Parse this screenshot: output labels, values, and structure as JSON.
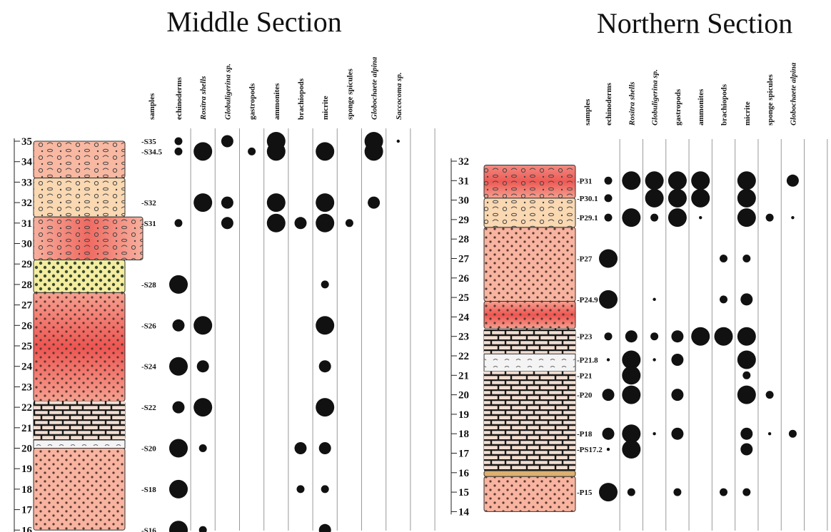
{
  "colors": {
    "salmon": "#f8b4a0",
    "red": "#ee5550",
    "yellow": "#f4eda0",
    "peach": "#f6cba8",
    "limestone": "#f0ddd0",
    "white_band": "#f2f2f2",
    "tan": "#d9b070",
    "dot": "#111111"
  },
  "sections": [
    {
      "id": "middle",
      "title": "Middle Section",
      "samples_label": "samples",
      "columns": [
        {
          "label": "echinoderms",
          "italic": false
        },
        {
          "label": "Rositra shells",
          "italic": true
        },
        {
          "label": "Globuligerina sp.",
          "italic": true
        },
        {
          "label": "gastropods",
          "italic": false
        },
        {
          "label": "ammonites",
          "italic": false
        },
        {
          "label": "brachiopods",
          "italic": false
        },
        {
          "label": "micrite",
          "italic": false
        },
        {
          "label": "sponge spicules",
          "italic": false
        },
        {
          "label": "Globochaete alpina",
          "italic": true
        },
        {
          "label": "Saccocoma sp.",
          "italic": true
        }
      ],
      "ticks": [
        "35",
        "34",
        "33",
        "32",
        "31",
        "30",
        "29",
        "28",
        "27",
        "26",
        "25",
        "24",
        "23",
        "22",
        "21",
        "20",
        "19",
        "18",
        "17",
        "16"
      ],
      "axis_range": [
        16,
        35
      ],
      "lithology": [
        {
          "from": 33.2,
          "to": 35.0,
          "type": "salmon-bio"
        },
        {
          "from": 31.3,
          "to": 33.2,
          "type": "peach-bio"
        },
        {
          "from": 29.2,
          "to": 31.3,
          "type": "red-layered"
        },
        {
          "from": 27.6,
          "to": 29.2,
          "type": "yellow-dots"
        },
        {
          "from": 22.3,
          "to": 27.6,
          "type": "red-dots"
        },
        {
          "from": 20.4,
          "to": 22.3,
          "type": "limestone-blocks"
        },
        {
          "from": 20.0,
          "to": 20.4,
          "type": "white"
        },
        {
          "from": 16.0,
          "to": 20.0,
          "type": "salmon-dots"
        }
      ],
      "samples": [
        {
          "label": "-S35",
          "level": 35.0,
          "values": [
            1,
            0,
            2,
            0,
            3,
            0,
            0,
            0,
            3,
            0
          ]
        },
        {
          "label": "-S34.5",
          "level": 34.5,
          "values": [
            1,
            3,
            0,
            1,
            3,
            0,
            3,
            0,
            3,
            0
          ]
        },
        {
          "label": "-S32",
          "level": 32.0,
          "values": [
            0,
            3,
            2,
            0,
            3,
            0,
            3,
            0,
            2,
            0
          ]
        },
        {
          "label": "-S31",
          "level": 31.0,
          "values": [
            1,
            0,
            2,
            0,
            3,
            2,
            3,
            1,
            0,
            0
          ]
        },
        {
          "label": "-S28",
          "level": 28.0,
          "values": [
            3,
            0,
            0,
            0,
            0,
            0,
            1,
            0,
            0,
            0
          ]
        },
        {
          "label": "-S26",
          "level": 26.0,
          "values": [
            2,
            3,
            0,
            0,
            0,
            0,
            3,
            0,
            0,
            0
          ]
        },
        {
          "label": "-S24",
          "level": 24.0,
          "values": [
            3,
            2,
            0,
            0,
            0,
            0,
            2,
            0,
            0,
            0
          ]
        },
        {
          "label": "-S22",
          "level": 22.0,
          "values": [
            2,
            3,
            0,
            0,
            0,
            0,
            3,
            0,
            0,
            0
          ]
        },
        {
          "label": "-S20",
          "level": 20.0,
          "values": [
            3,
            1,
            0,
            0,
            0,
            2,
            2,
            0,
            0,
            0
          ]
        },
        {
          "label": "-S18",
          "level": 18.0,
          "values": [
            3,
            0,
            0,
            0,
            0,
            1,
            1,
            0,
            0,
            0
          ]
        },
        {
          "label": "-S16",
          "level": 16.0,
          "values": [
            3,
            1,
            0,
            0,
            0,
            0,
            2,
            0,
            0,
            0
          ]
        }
      ],
      "extra_dot": {
        "label": "Saccocoma sp.",
        "level": 35.0,
        "size": 0.5
      }
    },
    {
      "id": "northern",
      "title": "Northern Section",
      "samples_label": "samples",
      "columns": [
        {
          "label": "echinoderms",
          "italic": false
        },
        {
          "label": "Rositra shells",
          "italic": true
        },
        {
          "label": "Globuligerina sp.",
          "italic": true
        },
        {
          "label": "gastropods",
          "italic": false
        },
        {
          "label": "ammonites",
          "italic": false
        },
        {
          "label": "brachiopods",
          "italic": false
        },
        {
          "label": "micrite",
          "italic": false
        },
        {
          "label": "sponge spicules",
          "italic": false
        },
        {
          "label": "Globochaete alpina",
          "italic": true
        }
      ],
      "ticks": [
        "32",
        "31",
        "30",
        "29",
        "28",
        "27",
        "26",
        "25",
        "24",
        "23",
        "22",
        "21",
        "20",
        "19",
        "18",
        "17",
        "16",
        "15",
        "14"
      ],
      "axis_range": [
        14,
        32
      ],
      "lithology": [
        {
          "from": 30.1,
          "to": 31.8,
          "type": "red-bio"
        },
        {
          "from": 28.6,
          "to": 30.1,
          "type": "peach-bio"
        },
        {
          "from": 24.8,
          "to": 28.6,
          "type": "salmon-dots"
        },
        {
          "from": 23.4,
          "to": 24.8,
          "type": "red-dots"
        },
        {
          "from": 22.1,
          "to": 23.4,
          "type": "salmon-blocks"
        },
        {
          "from": 21.2,
          "to": 22.1,
          "type": "white"
        },
        {
          "from": 16.1,
          "to": 21.2,
          "type": "limestone-blocks"
        },
        {
          "from": 15.8,
          "to": 16.1,
          "type": "tan"
        },
        {
          "from": 14.0,
          "to": 15.8,
          "type": "salmon-dots"
        }
      ],
      "samples": [
        {
          "label": "-P31",
          "level": 31.0,
          "values": [
            1,
            3,
            3,
            3,
            3,
            0,
            3,
            0,
            2
          ]
        },
        {
          "label": "-P30.1",
          "level": 30.1,
          "values": [
            1,
            0,
            3,
            3,
            3,
            0,
            3,
            0,
            0
          ]
        },
        {
          "label": "-P29.1",
          "level": 29.1,
          "values": [
            1,
            3,
            1,
            3,
            0.5,
            0,
            3,
            1,
            0.5
          ]
        },
        {
          "label": "-P27",
          "level": 27.0,
          "values": [
            3,
            0,
            0,
            0,
            0,
            1,
            1,
            0,
            0
          ]
        },
        {
          "label": "-P24.9",
          "level": 24.9,
          "values": [
            3,
            0,
            0.5,
            0,
            0,
            1,
            2,
            0,
            0
          ]
        },
        {
          "label": "-P23",
          "level": 23.0,
          "values": [
            1,
            2,
            1,
            2,
            3,
            3,
            3,
            0,
            0
          ]
        },
        {
          "label": "-P21.8",
          "level": 21.8,
          "values": [
            0.5,
            3,
            0.5,
            2,
            0,
            0,
            3,
            0,
            0
          ]
        },
        {
          "label": "-P21",
          "level": 21.0,
          "values": [
            0,
            3,
            0,
            0,
            0,
            0,
            1,
            0,
            0
          ]
        },
        {
          "label": "-P20",
          "level": 20.0,
          "values": [
            2,
            3,
            0,
            2,
            0,
            0,
            3,
            1,
            0
          ]
        },
        {
          "label": "-P18",
          "level": 18.0,
          "values": [
            2,
            3,
            0.5,
            2,
            0,
            0,
            2,
            0.5,
            1
          ]
        },
        {
          "label": "-PS17.2",
          "level": 17.2,
          "values": [
            0.5,
            3,
            0,
            0,
            0,
            0,
            2,
            0,
            0
          ]
        },
        {
          "label": "-P15",
          "level": 15.0,
          "values": [
            3,
            1,
            0,
            1,
            0,
            1,
            1,
            0,
            0
          ]
        }
      ]
    }
  ]
}
